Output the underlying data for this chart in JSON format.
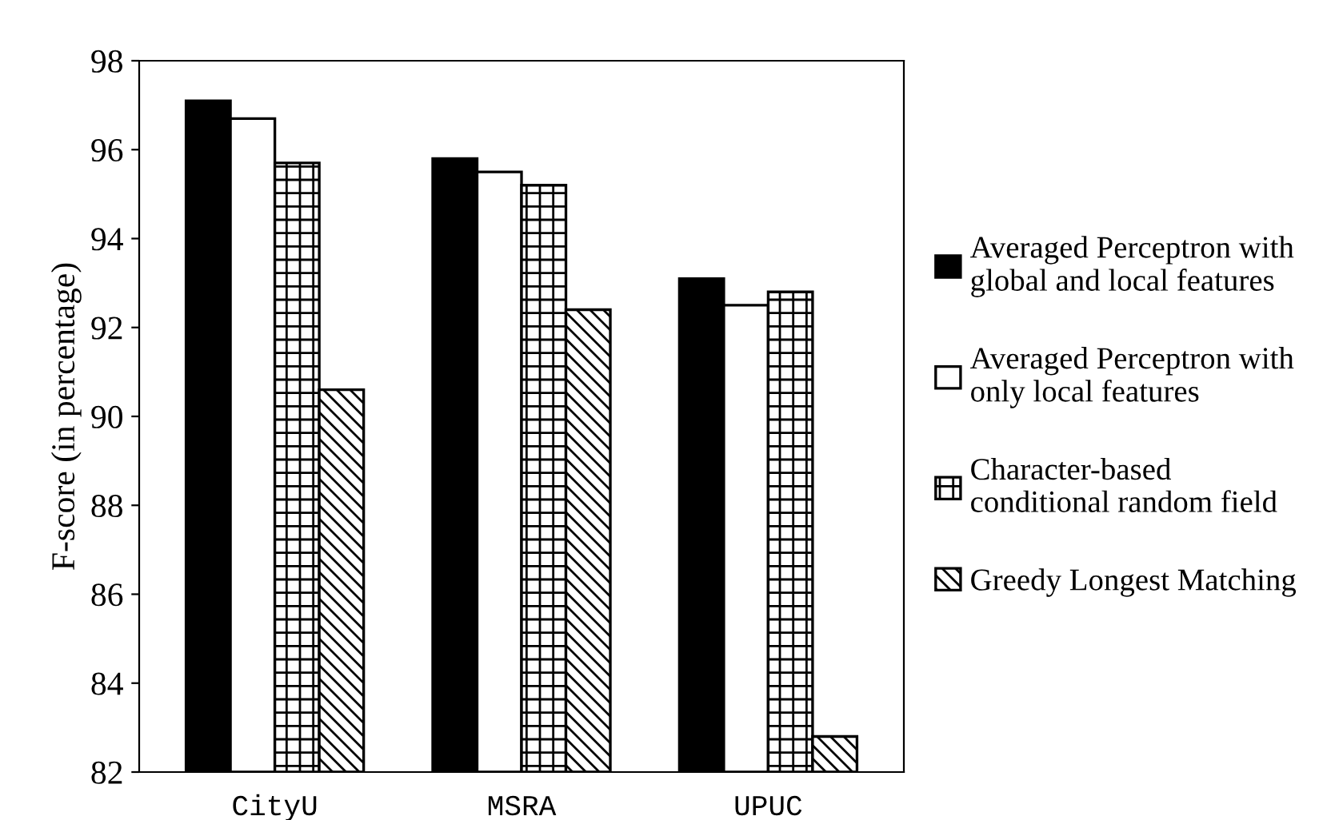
{
  "chart_data": {
    "type": "bar",
    "ylabel": "F-score (in percentage)",
    "categories": [
      "CityU",
      "MSRA",
      "UPUC"
    ],
    "series": [
      {
        "name": "Averaged Perceptron with\nglobal and local features",
        "color": "#000000",
        "values": [
          97.1,
          95.8,
          93.1
        ]
      },
      {
        "name": "Averaged Perceptron with\nonly local features",
        "color": "#ffffff",
        "values": [
          96.7,
          95.5,
          92.5
        ]
      },
      {
        "name": "Character-based\nconditional random field",
        "color": "#000000",
        "values": [
          95.7,
          95.2,
          92.8
        ]
      },
      {
        "name": "Greedy Longest Matching",
        "color": "#000000",
        "values": [
          90.6,
          92.4,
          82.8
        ]
      }
    ],
    "ylim": [
      82,
      98
    ],
    "yticks": [
      82,
      84,
      86,
      88,
      90,
      92,
      94,
      96,
      98
    ],
    "grid": false,
    "legend": "right"
  }
}
